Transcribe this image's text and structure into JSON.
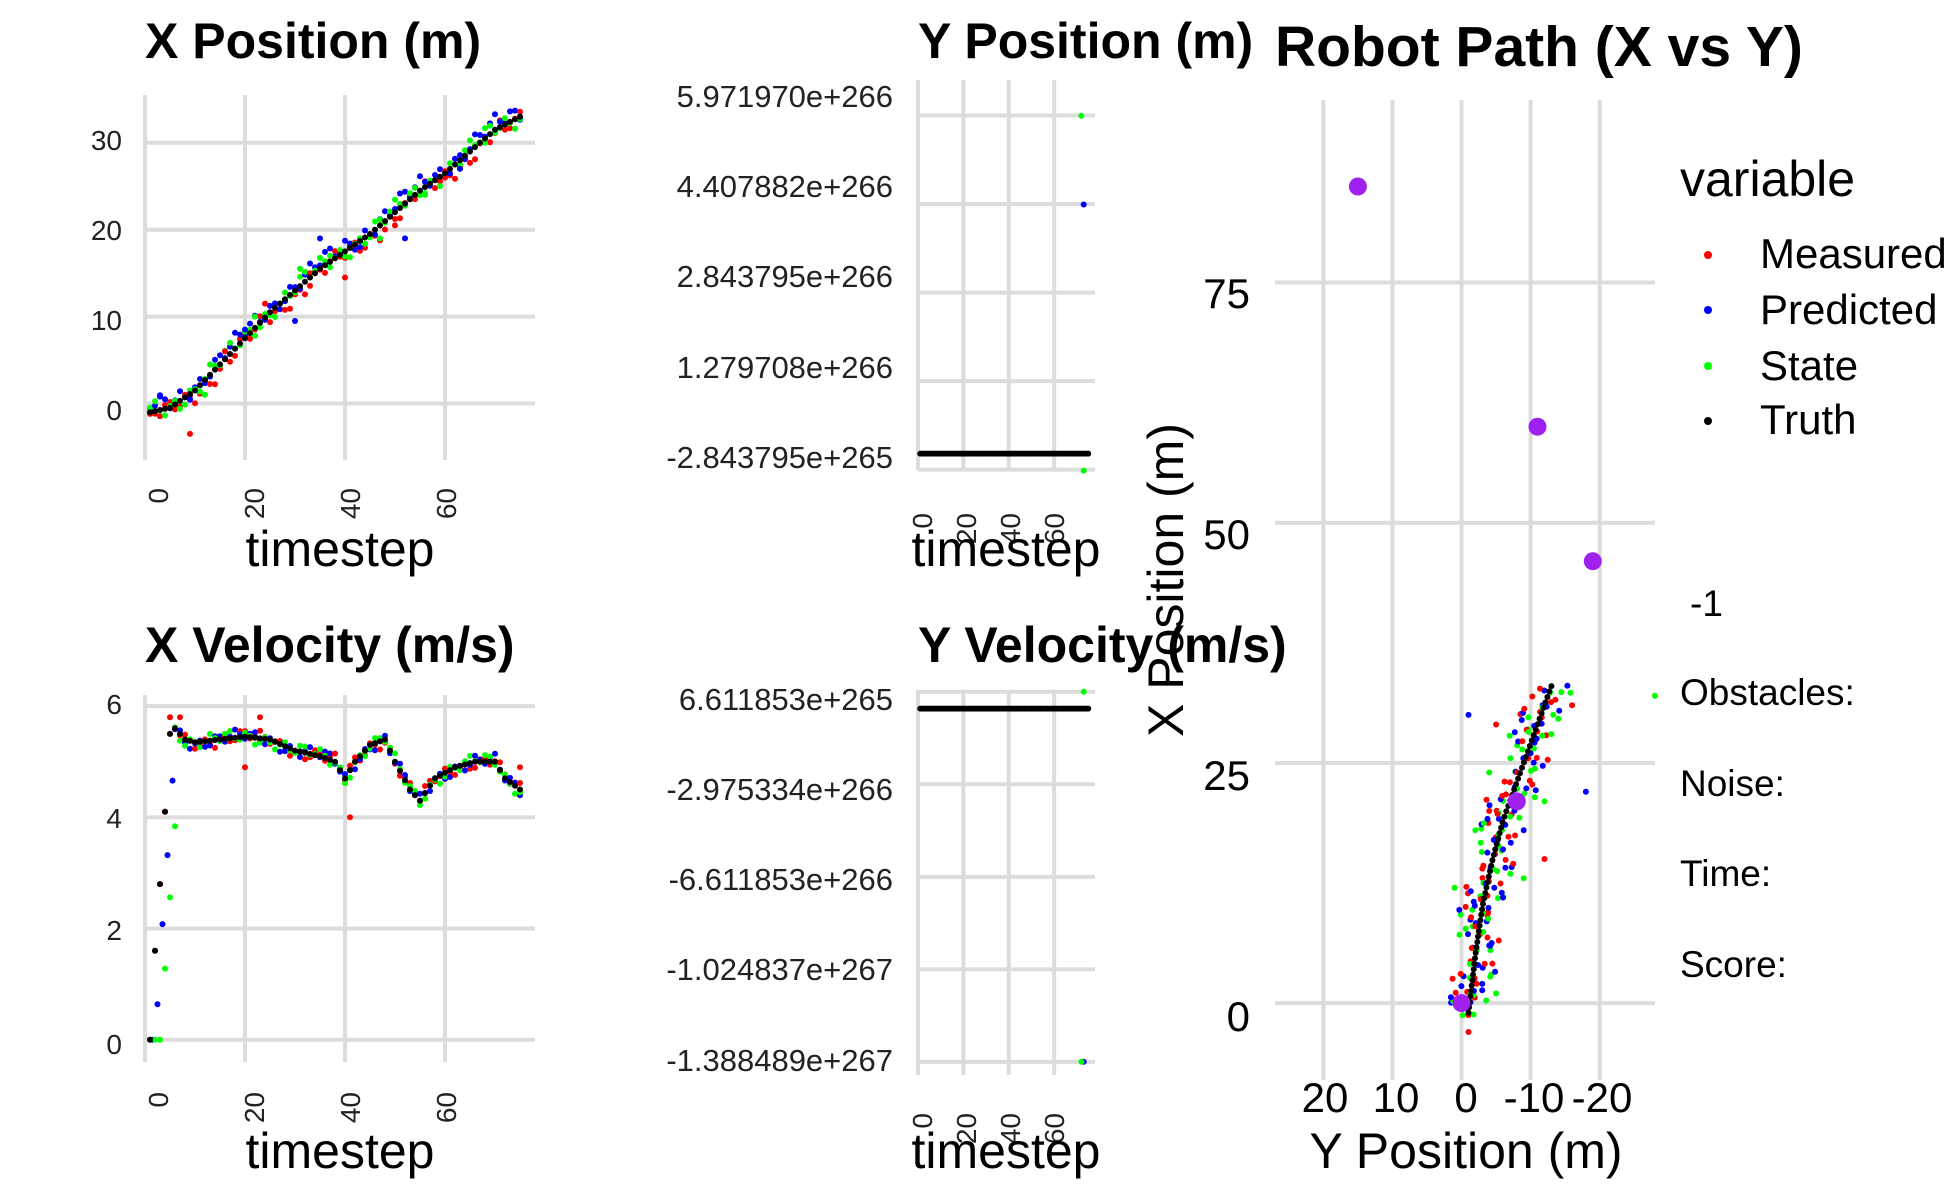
{
  "figure": {
    "legend": {
      "title": "variable",
      "items": [
        "Measured",
        "Predicted",
        "State",
        "Truth"
      ]
    },
    "side_labels": {
      "value": "-1",
      "obstacles": "Obstacles:",
      "noise": "Noise:",
      "time": "Time:",
      "score": "Score:"
    }
  },
  "colors": {
    "Measured": "#ff0000",
    "Predicted": "#0000ff",
    "State": "#00ff00",
    "Truth": "#000000",
    "Obstacle": "#a020f0"
  },
  "chart_data": [
    {
      "id": "x_position",
      "type": "scatter",
      "title": "X Position (m)",
      "xlabel": "timestep",
      "ylabel": "",
      "xlim": [
        0,
        78
      ],
      "ylim": [
        -6.5,
        35.5
      ],
      "xticks": [
        "0",
        "20",
        "40",
        "60"
      ],
      "yticks": [
        "0",
        "10",
        "20",
        "30"
      ],
      "truth": [
        [
          1,
          -1
        ],
        [
          5,
          -0.5
        ],
        [
          10,
          1.5
        ],
        [
          15,
          4.5
        ],
        [
          20,
          7.5
        ],
        [
          25,
          10.5
        ],
        [
          30,
          13
        ],
        [
          35,
          15.5
        ],
        [
          40,
          17.5
        ],
        [
          45,
          19.5
        ],
        [
          50,
          22
        ],
        [
          55,
          24.5
        ],
        [
          60,
          26.5
        ],
        [
          65,
          29
        ],
        [
          70,
          31.5
        ],
        [
          75,
          33
        ]
      ],
      "noisy": [
        [
          1,
          -1.2
        ],
        [
          3,
          0.8
        ],
        [
          6,
          0.3
        ],
        [
          9,
          -3.5
        ],
        [
          9,
          0.5
        ],
        [
          12,
          1
        ],
        [
          16,
          6
        ],
        [
          20,
          8.5
        ],
        [
          22,
          10
        ],
        [
          24,
          11.5
        ],
        [
          30,
          9.5
        ],
        [
          31,
          15.5
        ],
        [
          33,
          15
        ],
        [
          35,
          19
        ],
        [
          37,
          17
        ],
        [
          40,
          14.5
        ],
        [
          43,
          18
        ],
        [
          47,
          19
        ],
        [
          50,
          20.5
        ],
        [
          52,
          19
        ],
        [
          56,
          24
        ],
        [
          60,
          26
        ],
        [
          63,
          27
        ],
        [
          68,
          30
        ],
        [
          72,
          31.5
        ],
        [
          75,
          33
        ]
      ]
    },
    {
      "id": "y_position",
      "type": "scatter",
      "title": "Y Position (m)",
      "xlabel": "timestep",
      "ylabel": "",
      "xlim": [
        0,
        78
      ],
      "ylim": [
        -2.9e+265,
        6.6e+266
      ],
      "xticks": [
        "0",
        "20",
        "40",
        "60"
      ],
      "yticks": [
        "5.971970e+266",
        "4.407882e+266",
        "2.843795e+266",
        "1.279708e+266",
        "-2.843795e+265"
      ],
      "truth_value": -1,
      "outliers": [
        {
          "series": "State",
          "x": 72,
          "y": 5.97e+266
        },
        {
          "series": "Predicted",
          "x": 73,
          "y": 4.4e+266
        },
        {
          "series": "State",
          "x": 73,
          "y": -3e+265
        }
      ]
    },
    {
      "id": "x_velocity",
      "type": "scatter",
      "title": "X Velocity (m/s)",
      "xlabel": "timestep",
      "ylabel": "",
      "xlim": [
        0,
        78
      ],
      "ylim": [
        -0.4,
        6.2
      ],
      "xticks": [
        "0",
        "20",
        "40",
        "60"
      ],
      "yticks": [
        "0",
        "2",
        "4",
        "6"
      ],
      "truth": [
        [
          1,
          0
        ],
        [
          2,
          1.6
        ],
        [
          3,
          2.8
        ],
        [
          4,
          4.1
        ],
        [
          5,
          5.5
        ],
        [
          6,
          5.6
        ],
        [
          8,
          5.4
        ],
        [
          10,
          5.35
        ],
        [
          15,
          5.4
        ],
        [
          20,
          5.45
        ],
        [
          25,
          5.4
        ],
        [
          30,
          5.2
        ],
        [
          35,
          5.1
        ],
        [
          38,
          5
        ],
        [
          40,
          4.7
        ],
        [
          42,
          5
        ],
        [
          45,
          5.3
        ],
        [
          48,
          5.4
        ],
        [
          50,
          5
        ],
        [
          53,
          4.5
        ],
        [
          55,
          4.3
        ],
        [
          58,
          4.7
        ],
        [
          62,
          4.9
        ],
        [
          66,
          5
        ],
        [
          70,
          5
        ],
        [
          72,
          4.7
        ],
        [
          75,
          4.5
        ]
      ],
      "measured_extra": [
        [
          5,
          5.8
        ],
        [
          7,
          5.8
        ],
        [
          20,
          4.9
        ],
        [
          23,
          5.8
        ],
        [
          41,
          4
        ],
        [
          44,
          5.2
        ],
        [
          75,
          4.9
        ]
      ]
    },
    {
      "id": "y_velocity",
      "type": "scatter",
      "title": "Y Velocity (m/s)",
      "xlabel": "timestep",
      "ylabel": "",
      "xlim": [
        0,
        78
      ],
      "ylim": [
        -1.44e+267,
        7.3e+265
      ],
      "xticks": [
        "0",
        "20",
        "40",
        "60"
      ],
      "yticks": [
        "6.611853e+265",
        "-2.975334e+266",
        "-6.611853e+266",
        "-1.024837e+267",
        "-1.388489e+267"
      ],
      "truth_value": 0,
      "outliers": [
        {
          "series": "State",
          "x": 73,
          "y": 6.6e+265
        },
        {
          "series": "Predicted",
          "x": 73,
          "y": -1.388e+267
        },
        {
          "series": "State",
          "x": 72,
          "y": -1.388e+267
        }
      ]
    },
    {
      "id": "robot_path",
      "type": "scatter",
      "title": "Robot Path (X vs Y)",
      "xlabel": "Y Position (m)",
      "ylabel": "X Position (m)",
      "x_reversed": true,
      "xlim": [
        27,
        -28
      ],
      "ylim": [
        -8,
        94
      ],
      "xticks": [
        "20",
        "10",
        "0",
        "-10",
        "-20"
      ],
      "yticks": [
        "0",
        "25",
        "50",
        "75"
      ],
      "truth_path": [
        [
          -1,
          -1
        ],
        [
          -2,
          5
        ],
        [
          -3,
          10
        ],
        [
          -4.5,
          15
        ],
        [
          -6,
          19
        ],
        [
          -8,
          23
        ],
        [
          -10,
          27
        ],
        [
          -12,
          31
        ],
        [
          -13,
          33
        ]
      ],
      "obstacles": [
        [
          15,
          85
        ],
        [
          -11,
          60
        ],
        [
          -19,
          46
        ],
        [
          -8,
          21
        ],
        [
          0,
          0
        ]
      ],
      "noisy": [
        [
          -1,
          -3
        ],
        [
          -3,
          2
        ],
        [
          -5,
          1
        ],
        [
          -2,
          8
        ],
        [
          -4,
          6
        ],
        [
          1,
          12
        ],
        [
          -3,
          14
        ],
        [
          -6,
          11
        ],
        [
          -2,
          18
        ],
        [
          -4,
          20
        ],
        [
          -9,
          18
        ],
        [
          -12,
          21
        ],
        [
          -7,
          23
        ],
        [
          -10,
          26
        ],
        [
          -13,
          28
        ],
        [
          -16,
          31
        ],
        [
          -1,
          30
        ],
        [
          -4,
          24
        ],
        [
          -5,
          29
        ],
        [
          -18,
          22
        ],
        [
          -28,
          32
        ],
        [
          -12,
          15
        ],
        [
          -6,
          16
        ],
        [
          -9,
          13
        ]
      ]
    }
  ]
}
